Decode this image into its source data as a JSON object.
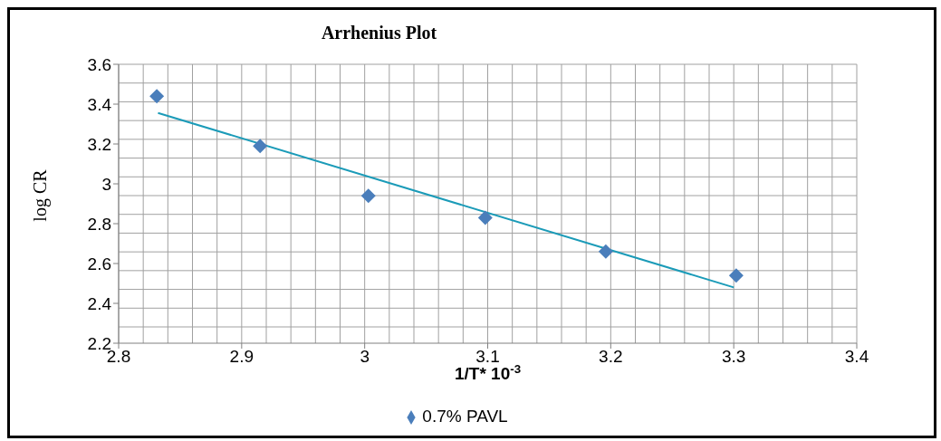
{
  "chart_data": {
    "type": "scatter",
    "title": "Arrhenius Plot",
    "xlabel": "1/T* 10$^{-3}$",
    "ylabel": "log CR",
    "series": [
      {
        "name": "0.7% PAVL",
        "marker": "diamond",
        "color": "#4a7ebb",
        "x": [
          2.831,
          2.915,
          3.003,
          3.098,
          3.196,
          3.302
        ],
        "values": [
          3.44,
          3.19,
          2.94,
          2.83,
          2.66,
          2.54
        ]
      },
      {
        "type": "line",
        "marker": "none",
        "color": "#1b9bb8",
        "x": [
          2.832,
          3.3
        ],
        "values": [
          3.356,
          2.48
        ]
      }
    ],
    "xlim": [
      2.8,
      3.4
    ],
    "xticks": [
      2.8,
      2.9,
      3,
      3.1,
      3.2,
      3.3,
      3.4
    ],
    "ylim": [
      2.2,
      3.6
    ],
    "yticks": [
      2.2,
      2.4,
      2.6,
      2.8,
      3,
      3.2,
      3.4,
      3.6
    ],
    "grid": true,
    "legend": "bottom",
    "line_style": "solid"
  }
}
